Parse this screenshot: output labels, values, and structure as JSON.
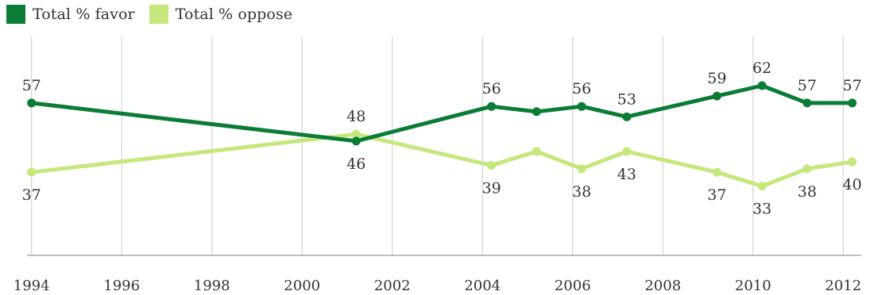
{
  "legend": {
    "favor_label": "Total % favor",
    "oppose_label": "Total % oppose"
  },
  "colors": {
    "favor": "#0b7c35",
    "oppose": "#c4e87c",
    "grid": "#d4d4d4",
    "axis": "#999999",
    "text": "#333333"
  },
  "chart_data": {
    "type": "line",
    "title": "",
    "xlabel": "",
    "ylabel": "",
    "xlim": [
      1993.9,
      2012.4
    ],
    "ylim": [
      13,
      73
    ],
    "grid": true,
    "legend_position": "top-left",
    "x_ticks": [
      1994,
      1996,
      1998,
      2000,
      2002,
      2004,
      2006,
      2008,
      2010,
      2012
    ],
    "series": [
      {
        "name": "Total % favor",
        "color": "#0b7c35",
        "points": [
          {
            "x": 1994.0,
            "y": 57,
            "label": "57",
            "label_pos": "above"
          },
          {
            "x": 2001.2,
            "y": 46,
            "label": "46",
            "label_pos": "below"
          },
          {
            "x": 2004.2,
            "y": 56,
            "label": "56",
            "label_pos": "above"
          },
          {
            "x": 2005.2,
            "y": 54.5,
            "label": "",
            "label_pos": "none"
          },
          {
            "x": 2006.2,
            "y": 56,
            "label": "56",
            "label_pos": "above"
          },
          {
            "x": 2007.2,
            "y": 53,
            "label": "53",
            "label_pos": "above"
          },
          {
            "x": 2009.2,
            "y": 59,
            "label": "59",
            "label_pos": "above"
          },
          {
            "x": 2010.2,
            "y": 62,
            "label": "62",
            "label_pos": "above"
          },
          {
            "x": 2011.2,
            "y": 57,
            "label": "57",
            "label_pos": "above"
          },
          {
            "x": 2012.2,
            "y": 57,
            "label": "57",
            "label_pos": "above"
          }
        ]
      },
      {
        "name": "Total % oppose",
        "color": "#c4e87c",
        "points": [
          {
            "x": 1994.0,
            "y": 37,
            "label": "37",
            "label_pos": "below"
          },
          {
            "x": 2001.2,
            "y": 48,
            "label": "48",
            "label_pos": "above"
          },
          {
            "x": 2004.2,
            "y": 39,
            "label": "39",
            "label_pos": "below"
          },
          {
            "x": 2005.2,
            "y": 43,
            "label": "",
            "label_pos": "none"
          },
          {
            "x": 2006.2,
            "y": 38,
            "label": "38",
            "label_pos": "below"
          },
          {
            "x": 2007.2,
            "y": 43,
            "label": "43",
            "label_pos": "below"
          },
          {
            "x": 2009.2,
            "y": 37,
            "label": "37",
            "label_pos": "below"
          },
          {
            "x": 2010.2,
            "y": 33,
            "label": "33",
            "label_pos": "below"
          },
          {
            "x": 2011.2,
            "y": 38,
            "label": "38",
            "label_pos": "below"
          },
          {
            "x": 2012.2,
            "y": 40,
            "label": "40",
            "label_pos": "below"
          }
        ]
      }
    ]
  }
}
